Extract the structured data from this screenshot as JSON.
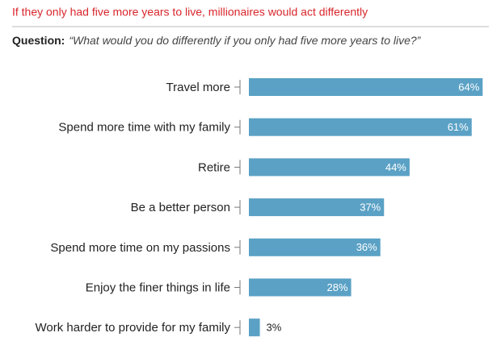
{
  "chart_data": {
    "type": "bar",
    "orientation": "horizontal",
    "title": "If they only had five more years to live, millionaires would act differently",
    "question_label": "Question:",
    "question": "“What would you do differently if you only had five more years to live?”",
    "categories": [
      "Travel more",
      "Spend more time with my family",
      "Retire",
      "Be a better person",
      "Spend more time on my passions",
      "Enjoy the finer things in life",
      "Work harder to provide for my family"
    ],
    "values": [
      64,
      61,
      44,
      37,
      36,
      28,
      3
    ],
    "value_labels": [
      "64%",
      "61%",
      "44%",
      "37%",
      "36%",
      "28%",
      "3%"
    ],
    "color": "#5aa1c5"
  }
}
